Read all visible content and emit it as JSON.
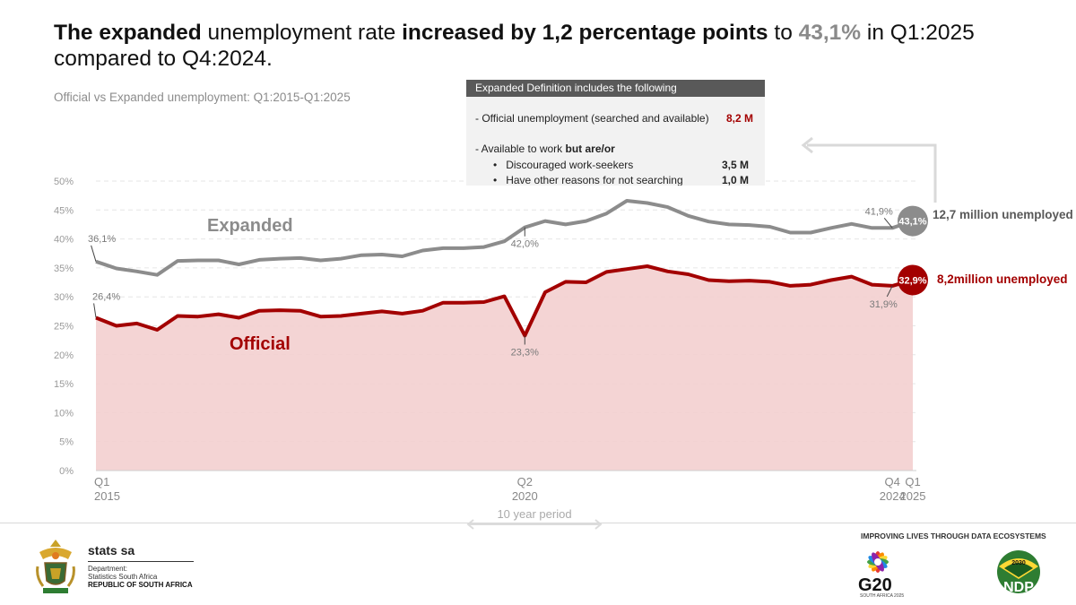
{
  "headline": {
    "p1": "The expanded",
    "p2": " unemployment rate ",
    "p3": "increased by 1,2 percentage points",
    "p4": " to ",
    "p5": "43,1%",
    "p6": " in Q1:2025 compared to Q4:2024."
  },
  "subtitle": "Official vs Expanded unemployment: Q1:2015-Q1:2025",
  "definition_box": {
    "header": "Expanded  Definition includes  the following",
    "official_line": "- Official unemployment (searched and available)",
    "official_value": "8,2 M",
    "available_prefix": "- Available to work ",
    "available_bold": "but are/or",
    "items": [
      {
        "label": "Discouraged work-seekers",
        "value": "3,5 M"
      },
      {
        "label": "Have other reasons for not searching",
        "value": "1,0 M"
      }
    ]
  },
  "chart_data": {
    "type": "line",
    "ylim": [
      0,
      50
    ],
    "yticks": [
      "0%",
      "5%",
      "10%",
      "15%",
      "20%",
      "25%",
      "30%",
      "35%",
      "40%",
      "45%",
      "50%"
    ],
    "x_labels": [
      {
        "index": 0,
        "line1": "Q1",
        "line2": "2015"
      },
      {
        "index": 21,
        "line1": "Q2",
        "line2": "2020"
      },
      {
        "index": 39,
        "line1": "Q4",
        "line2": "2024"
      },
      {
        "index": 40,
        "line1": "Q1",
        "line2": "2025"
      }
    ],
    "series": [
      {
        "name": "Expanded",
        "color": "#8c8c8c",
        "values": [
          36.1,
          34.9,
          34.4,
          33.8,
          36.2,
          36.3,
          36.3,
          35.6,
          36.4,
          36.6,
          36.7,
          36.3,
          36.6,
          37.2,
          37.3,
          37.0,
          38.0,
          38.4,
          38.4,
          38.6,
          39.6,
          42.0,
          43.1,
          42.5,
          43.1,
          44.4,
          46.6,
          46.2,
          45.5,
          44.0,
          43.0,
          42.5,
          42.4,
          42.1,
          41.1,
          41.1,
          41.9,
          42.6,
          41.9,
          41.9,
          43.1
        ]
      },
      {
        "name": "Official",
        "color": "#a30000",
        "values": [
          26.4,
          25.0,
          25.4,
          24.3,
          26.7,
          26.6,
          27.0,
          26.4,
          27.6,
          27.7,
          27.6,
          26.6,
          26.7,
          27.1,
          27.5,
          27.1,
          27.6,
          29.0,
          29.0,
          29.1,
          30.1,
          23.3,
          30.8,
          32.6,
          32.5,
          34.3,
          34.8,
          35.3,
          34.4,
          33.9,
          32.9,
          32.7,
          32.8,
          32.6,
          31.9,
          32.1,
          32.9,
          33.5,
          32.1,
          31.9,
          32.9
        ]
      }
    ],
    "annotations": [
      {
        "text": "36,1%",
        "index": 0,
        "series": "Expanded"
      },
      {
        "text": "26,4%",
        "index": 0,
        "series": "Official"
      },
      {
        "text": "42,0%",
        "index": 21,
        "series": "Expanded"
      },
      {
        "text": "23,3%",
        "index": 21,
        "series": "Official"
      },
      {
        "text": "41,9%",
        "index": 39,
        "series": "Expanded"
      },
      {
        "text": "31,9%",
        "index": 39,
        "series": "Official"
      }
    ],
    "end_badges": {
      "expanded": {
        "text": "43,1%",
        "note": "12,7 million unemployed"
      },
      "official": {
        "text": "32,9%",
        "note": "8,2million unemployed"
      }
    },
    "series_labels": {
      "expanded": "Expanded",
      "official": "Official"
    },
    "period_label": "10 year period"
  },
  "footer": {
    "brand": "stats sa",
    "dept1": "Department:",
    "dept2": "Statistics South Africa",
    "rsa": "REPUBLIC OF SOUTH AFRICA",
    "tagline": "IMPROVING LIVES THROUGH DATA ECOSYSTEMS",
    "g20": "G20",
    "g20_sub": "SOUTH AFRICA 2025",
    "ndp": "NDP",
    "ndp_year": "2030"
  },
  "colors": {
    "official": "#a30000",
    "expanded": "#8c8c8c",
    "official_fill": "#f3cfcf"
  }
}
